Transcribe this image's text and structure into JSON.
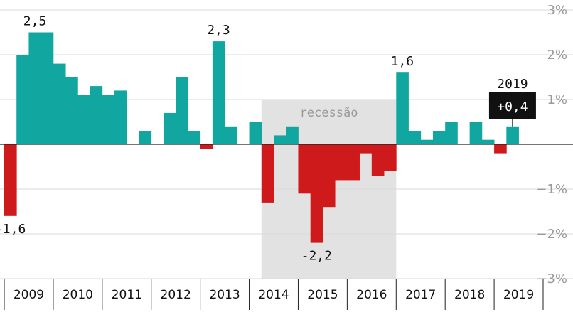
{
  "chart_data": {
    "type": "bar",
    "title": "",
    "xlabel": "",
    "ylabel": "",
    "ylim": [
      -3,
      3
    ],
    "y_ticks": [
      {
        "value": 3,
        "label": "3%"
      },
      {
        "value": 2,
        "label": "2%"
      },
      {
        "value": 1,
        "label": "1%"
      },
      {
        "value": -1,
        "label": "−1%"
      },
      {
        "value": -2,
        "label": "−2%"
      },
      {
        "value": -3,
        "label": "−3%"
      }
    ],
    "grid": true,
    "years": [
      "2009",
      "2010",
      "2011",
      "2012",
      "2013",
      "2014",
      "2015",
      "2016",
      "2017",
      "2018",
      "2019"
    ],
    "quarters_per_year": 4,
    "values": [
      -1.6,
      2.0,
      2.5,
      2.5,
      1.8,
      1.5,
      1.1,
      1.3,
      1.1,
      1.2,
      null,
      0.3,
      null,
      0.7,
      1.5,
      0.3,
      -0.1,
      2.3,
      0.4,
      null,
      0.5,
      -1.3,
      0.2,
      0.4,
      -1.1,
      -2.2,
      -1.4,
      -0.8,
      -0.8,
      -0.2,
      -0.7,
      -0.6,
      1.6,
      0.3,
      0.1,
      0.3,
      0.5,
      null,
      0.5,
      0.1,
      -0.2,
      0.4
    ],
    "colors": {
      "positive": "#11a7a0",
      "negative": "#cf1a1c",
      "recession_band": "#e2e2e2",
      "grid": "#d9d9d9",
      "axis_text": "#9a9a9a"
    },
    "recession": {
      "label": "recessão",
      "start_index": 21,
      "end_index": 31
    },
    "annotations": [
      {
        "index": 0,
        "text": "-1,6",
        "position": "below"
      },
      {
        "index": 2,
        "text": "2,5",
        "position": "above"
      },
      {
        "index": 17,
        "text": "2,3",
        "position": "above"
      },
      {
        "index": 25,
        "text": "-2,2",
        "position": "below"
      },
      {
        "index": 32,
        "text": "1,6",
        "position": "above"
      }
    ],
    "highlight": {
      "index": 41,
      "year_label": "2019",
      "value_label": "+0,4",
      "background": "#111111"
    }
  }
}
